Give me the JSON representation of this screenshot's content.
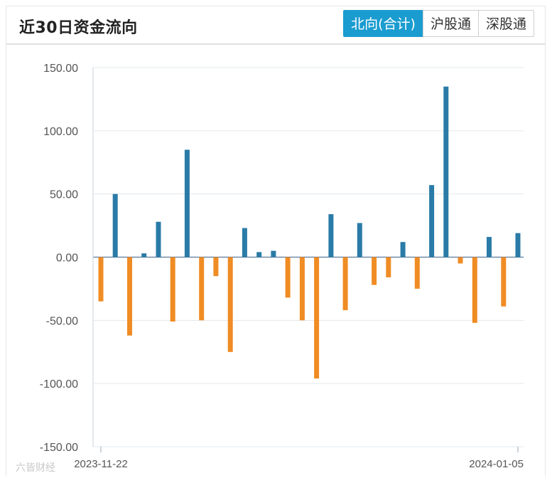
{
  "header": {
    "title": "近30日资金流向",
    "tabs": [
      {
        "label": "北向(合计)",
        "active": true
      },
      {
        "label": "沪股通",
        "active": false
      },
      {
        "label": "深股通",
        "active": false
      }
    ]
  },
  "colors": {
    "positive": "#2a7ba7",
    "negative": "#f08c24",
    "accent": "#1a9cd0"
  },
  "watermark": "六皆财经",
  "chart_data": {
    "type": "bar",
    "ylim": [
      -150,
      150
    ],
    "yticks": [
      "150.00",
      "100.00",
      "50.00",
      "0.00",
      "-50.00",
      "-100.00",
      "-150.00"
    ],
    "grid": true,
    "xlabels": [
      "2023-11-22",
      "2024-01-05"
    ],
    "values": [
      -35,
      50,
      -62,
      3,
      28,
      -51,
      85,
      -50,
      -15,
      -75,
      23,
      4,
      5,
      -32,
      -50,
      -96,
      34,
      -42,
      27,
      -22,
      -16,
      12,
      -25,
      57,
      135,
      -5,
      -52,
      16,
      -39,
      19
    ]
  }
}
